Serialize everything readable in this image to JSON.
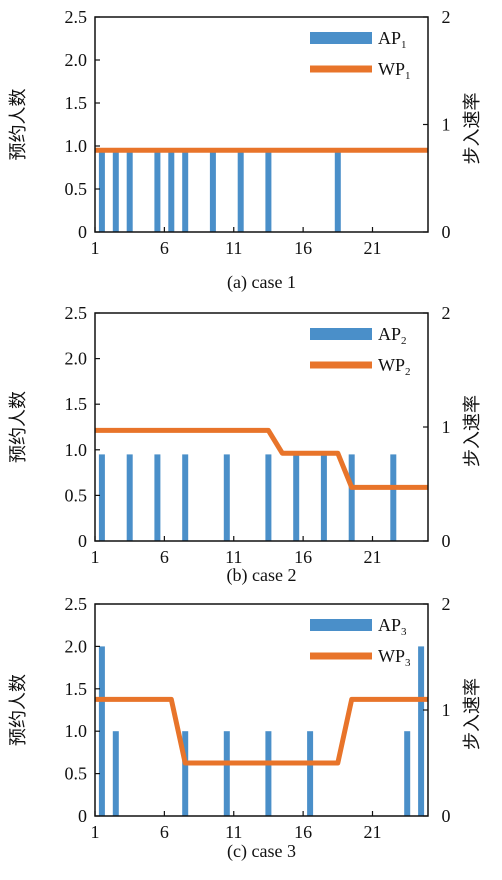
{
  "chart_data": [
    {
      "type": "bar+line",
      "caption": "(a)  case 1",
      "ylabel_left": "预约人数",
      "ylabel_right": "步入速率",
      "x_ticks": [
        1,
        6,
        11,
        16,
        21
      ],
      "xlim": [
        1,
        25
      ],
      "ylim_left": [
        0,
        2.5
      ],
      "yticks_left": [
        0,
        0.5,
        1.0,
        1.5,
        2.0,
        2.5
      ],
      "ytick_labels_left": [
        "0",
        "0.5",
        "1.0",
        "1.5",
        "2.0",
        "2.5"
      ],
      "ylim_right": [
        0,
        2
      ],
      "yticks_right": [
        0,
        1,
        2
      ],
      "legend": [
        {
          "base": "AP",
          "sub": "1"
        },
        {
          "base": "WP",
          "sub": "1"
        }
      ],
      "legend_position": "top-right",
      "bars": {
        "x": [
          1.5,
          2.5,
          3.5,
          5.5,
          6.5,
          7.5,
          9.5,
          11.5,
          13.5,
          18.5
        ],
        "values": [
          0.95,
          0.95,
          0.95,
          0.95,
          0.95,
          0.95,
          0.95,
          0.95,
          0.95,
          0.95
        ],
        "color": "#4a8fc9"
      },
      "line": {
        "x": [
          1,
          25
        ],
        "values": [
          0.76,
          0.76
        ],
        "color": "#e8742a"
      }
    },
    {
      "type": "bar+line",
      "caption": "(b)  case 2",
      "ylabel_left": "预约人数",
      "ylabel_right": "步入速率",
      "x_ticks": [
        1,
        6,
        11,
        16,
        21
      ],
      "xlim": [
        1,
        25
      ],
      "ylim_left": [
        0,
        2.5
      ],
      "yticks_left": [
        0,
        0.5,
        1.0,
        1.5,
        2.0,
        2.5
      ],
      "ytick_labels_left": [
        "0",
        "0.5",
        "1.0",
        "1.5",
        "2.0",
        "2.5"
      ],
      "ylim_right": [
        0,
        2
      ],
      "yticks_right": [
        0,
        1,
        2
      ],
      "legend": [
        {
          "base": "AP",
          "sub": "2"
        },
        {
          "base": "WP",
          "sub": "2"
        }
      ],
      "legend_position": "top-right",
      "bars": {
        "x": [
          1.5,
          3.5,
          5.5,
          7.5,
          10.5,
          13.5,
          15.5,
          17.5,
          19.5,
          22.5
        ],
        "values": [
          0.95,
          0.95,
          0.95,
          0.95,
          0.95,
          0.95,
          0.95,
          0.95,
          0.95,
          0.95
        ],
        "color": "#4a8fc9"
      },
      "line": {
        "x": [
          1,
          13.5,
          14.5,
          18.5,
          19.5,
          25
        ],
        "values": [
          0.97,
          0.97,
          0.77,
          0.77,
          0.47,
          0.47
        ],
        "color": "#e8742a"
      }
    },
    {
      "type": "bar+line",
      "caption": "(c)  case 3",
      "ylabel_left": "预约人数",
      "ylabel_right": "步入速率",
      "x_ticks": [
        1,
        6,
        11,
        16,
        21
      ],
      "xlim": [
        1,
        25
      ],
      "ylim_left": [
        0,
        2.5
      ],
      "yticks_left": [
        0,
        0.5,
        1.0,
        1.5,
        2.0,
        2.5
      ],
      "ytick_labels_left": [
        "0",
        "0.5",
        "1.0",
        "1.5",
        "2.0",
        "2.5"
      ],
      "ylim_right": [
        0,
        2
      ],
      "yticks_right": [
        0,
        1,
        2
      ],
      "legend": [
        {
          "base": "AP",
          "sub": "3"
        },
        {
          "base": "WP",
          "sub": "3"
        }
      ],
      "legend_position": "top-right",
      "bars": {
        "x": [
          1.5,
          2.5,
          7.5,
          10.5,
          13.5,
          16.5,
          23.5,
          24.5
        ],
        "values": [
          2.0,
          1.0,
          1.0,
          1.0,
          1.0,
          1.0,
          1.0,
          2.0
        ],
        "color": "#4a8fc9"
      },
      "line": {
        "x": [
          1,
          6.5,
          7.5,
          18.5,
          19.5,
          25
        ],
        "values": [
          1.1,
          1.1,
          0.5,
          0.5,
          1.1,
          1.1
        ],
        "color": "#e8742a"
      }
    }
  ]
}
